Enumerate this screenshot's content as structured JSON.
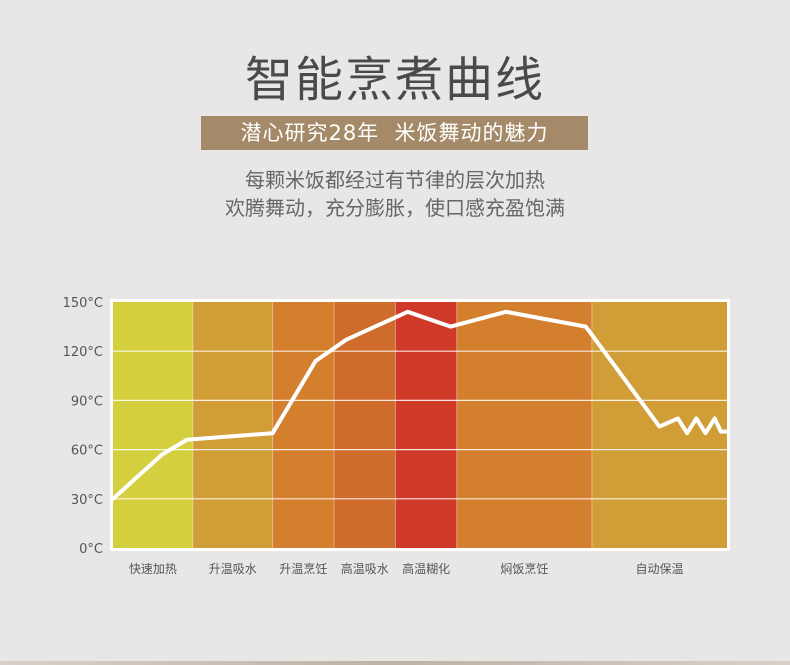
{
  "header": {
    "title": "智能烹煮曲线",
    "banner": "潜心研究28年  米饭舞动的魅力",
    "description": [
      "每颗米饭都经过有节律的层次加热",
      "欢腾舞动，充分膨胀，使口感充盈饱满"
    ]
  },
  "colors": {
    "title": "#4a4a4a",
    "banner_bg": "#a48a68",
    "curve": "#ffffff",
    "stage_colors": [
      "#d4cf3f",
      "#d19d36",
      "#d47f2e",
      "#cf6b2b",
      "#cf3a28",
      "#d47f2e",
      "#d19d36"
    ]
  },
  "chart_data": {
    "type": "line",
    "title": "",
    "ylim": [
      0,
      150
    ],
    "yticks": [
      {
        "value": 0,
        "label": "0°C"
      },
      {
        "value": 30,
        "label": "30°C"
      },
      {
        "value": 60,
        "label": "60°C"
      },
      {
        "value": 90,
        "label": "90°C"
      },
      {
        "value": 120,
        "label": "120°C"
      },
      {
        "value": 150,
        "label": "150°C"
      }
    ],
    "stages": [
      {
        "label": "快速加热",
        "start": 0,
        "end": 13
      },
      {
        "label": "升温吸水",
        "start": 13,
        "end": 26
      },
      {
        "label": "升温烹饪",
        "start": 26,
        "end": 36
      },
      {
        "label": "高温吸水",
        "start": 36,
        "end": 46
      },
      {
        "label": "高温糊化",
        "start": 46,
        "end": 56
      },
      {
        "label": "焖饭烹饪",
        "start": 56,
        "end": 78
      },
      {
        "label": "自动保温",
        "start": 78,
        "end": 100
      }
    ],
    "xlim": [
      0,
      100
    ],
    "grid": true,
    "series": [
      {
        "points": [
          [
            0,
            30
          ],
          [
            8,
            57
          ],
          [
            12,
            66
          ],
          [
            26,
            70
          ],
          [
            33,
            114
          ],
          [
            38,
            127
          ],
          [
            48,
            144
          ],
          [
            55,
            135
          ],
          [
            64,
            144
          ],
          [
            77,
            135
          ],
          [
            89,
            74
          ],
          [
            92,
            79
          ],
          [
            93.5,
            70
          ],
          [
            95,
            79
          ],
          [
            96.5,
            70
          ],
          [
            98,
            79
          ],
          [
            99,
            71
          ],
          [
            100,
            71
          ]
        ]
      }
    ]
  }
}
